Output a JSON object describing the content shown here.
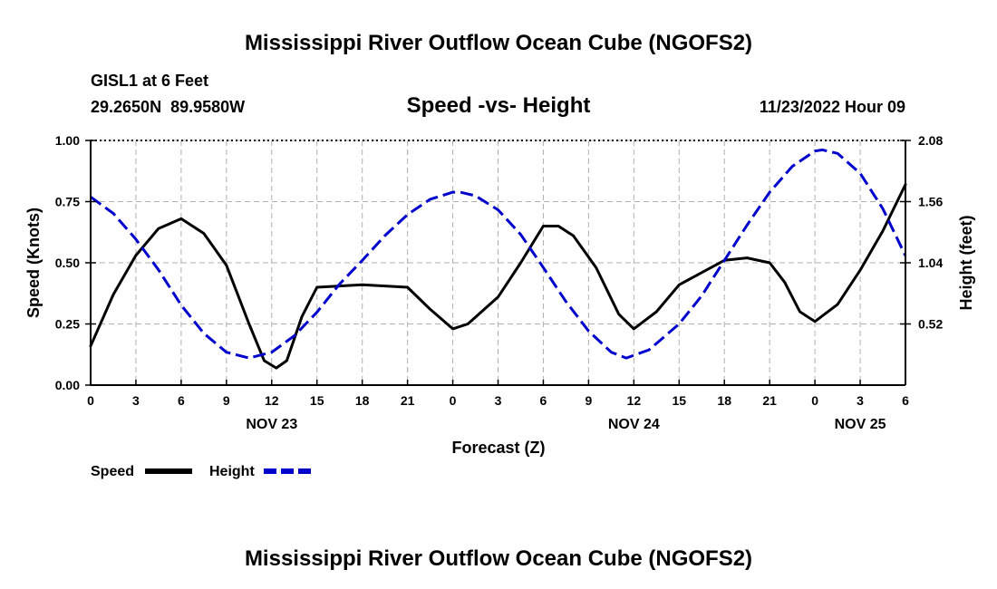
{
  "title": "Mississippi River Outflow Ocean Cube (NGOFS2)",
  "footer_title": "Mississippi River Outflow Ocean Cube (NGOFS2)",
  "station": {
    "name": "GISL1 at 6 Feet",
    "coords": "29.2650N  89.9580W"
  },
  "timestamp": "11/23/2022 Hour 09",
  "colors": {
    "speed": "#000000",
    "height": "#0000cc",
    "grid": "#b0b0b0"
  },
  "legend": {
    "speed_label": "Speed",
    "height_label": "Height"
  },
  "chart_data": {
    "type": "line",
    "title": "Speed -vs- Height",
    "xlabel": "Forecast (Z)",
    "ylabel": "Speed (Knots)",
    "y2label": "Height (feet)",
    "xlim": [
      0,
      54
    ],
    "ylim": [
      0,
      1.0
    ],
    "y2lim": [
      0,
      2.08
    ],
    "x_ticks": [
      0,
      3,
      6,
      9,
      12,
      15,
      18,
      21,
      24,
      27,
      30,
      33,
      36,
      39,
      42,
      45,
      48,
      51,
      54
    ],
    "x_tick_labels": [
      "0",
      "3",
      "6",
      "9",
      "12",
      "15",
      "18",
      "21",
      "0",
      "3",
      "6",
      "9",
      "12",
      "15",
      "18",
      "21",
      "0",
      "3",
      "6"
    ],
    "date_labels": [
      {
        "x": 12,
        "label": "NOV 23"
      },
      {
        "x": 36,
        "label": "NOV 24"
      },
      {
        "x": 51,
        "label": "NOV 25"
      }
    ],
    "y_ticks": [
      0,
      0.25,
      0.5,
      0.75,
      1.0
    ],
    "y_tick_labels": [
      "0.00",
      "0.25",
      "0.50",
      "0.75",
      "1.00"
    ],
    "y2_ticks": [
      0.52,
      1.04,
      1.56,
      2.08
    ],
    "y2_tick_labels": [
      "0.52",
      "1.04",
      "1.56",
      "2.08"
    ],
    "grid": true,
    "series": [
      {
        "name": "Speed",
        "axis": "left",
        "style": "solid",
        "x": [
          0,
          1.5,
          3,
          4.5,
          6,
          7.5,
          9,
          10.5,
          11.5,
          12.3,
          13,
          14,
          15,
          18,
          21,
          22.5,
          24,
          25,
          27,
          28.5,
          30,
          31,
          32,
          33.5,
          35,
          36,
          37.5,
          39,
          42,
          43.5,
          45,
          46,
          47,
          48,
          49.5,
          51,
          52.5,
          54
        ],
        "values": [
          0.16,
          0.37,
          0.53,
          0.64,
          0.68,
          0.62,
          0.49,
          0.25,
          0.1,
          0.07,
          0.1,
          0.28,
          0.4,
          0.41,
          0.4,
          0.31,
          0.23,
          0.25,
          0.36,
          0.5,
          0.65,
          0.65,
          0.61,
          0.48,
          0.29,
          0.23,
          0.3,
          0.41,
          0.51,
          0.52,
          0.5,
          0.42,
          0.3,
          0.26,
          0.33,
          0.47,
          0.63,
          0.82
        ]
      },
      {
        "name": "Height",
        "axis": "right",
        "style": "dashed",
        "x": [
          0,
          1.5,
          3,
          4.5,
          6,
          7.5,
          9,
          10.5,
          12,
          13.5,
          15,
          16.5,
          18,
          19.5,
          21,
          22.5,
          24,
          24.5,
          25.5,
          27,
          28.5,
          30,
          31.5,
          33,
          34.5,
          35.5,
          37,
          39,
          40.5,
          42,
          43.5,
          45,
          46.5,
          48,
          48.5,
          49.5,
          51,
          52.5,
          54
        ],
        "values": [
          1.6,
          1.46,
          1.24,
          0.98,
          0.68,
          0.44,
          0.28,
          0.23,
          0.28,
          0.42,
          0.62,
          0.86,
          1.06,
          1.27,
          1.45,
          1.58,
          1.64,
          1.64,
          1.61,
          1.49,
          1.28,
          1.0,
          0.71,
          0.46,
          0.28,
          0.23,
          0.3,
          0.52,
          0.76,
          1.06,
          1.36,
          1.64,
          1.86,
          1.99,
          2.0,
          1.97,
          1.8,
          1.5,
          1.1
        ]
      }
    ]
  }
}
